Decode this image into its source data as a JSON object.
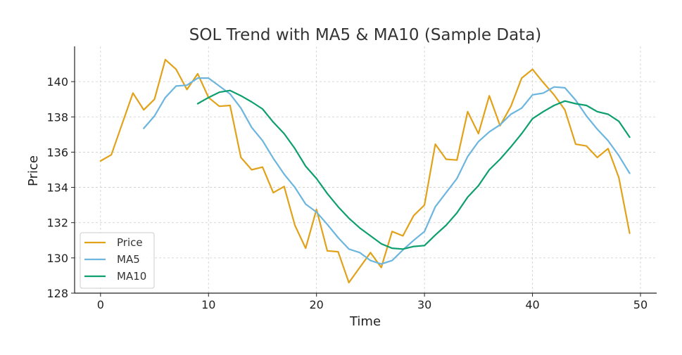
{
  "chart_data": {
    "type": "line",
    "title": "SOL Trend with MA5 & MA10 (Sample Data)",
    "xlabel": "Time",
    "ylabel": "Price",
    "xlim": [
      -2.4,
      51.5
    ],
    "ylim": [
      128,
      142
    ],
    "xticks": [
      0,
      10,
      20,
      30,
      40,
      50
    ],
    "yticks": [
      128,
      130,
      132,
      134,
      136,
      138,
      140
    ],
    "grid": true,
    "legend_position": "lower-left",
    "series": [
      {
        "name": "Price",
        "color": "#E1A21A",
        "x_start": 0,
        "values": [
          135.5,
          135.85,
          137.6,
          139.35,
          138.4,
          139.0,
          141.25,
          140.7,
          139.55,
          140.45,
          139.1,
          138.6,
          138.65,
          135.7,
          135.0,
          135.15,
          133.7,
          134.05,
          131.85,
          130.55,
          132.75,
          130.4,
          130.35,
          128.6,
          129.45,
          130.3,
          129.45,
          131.5,
          131.25,
          132.4,
          133.0,
          136.45,
          135.6,
          135.55,
          138.3,
          137.05,
          139.2,
          137.5,
          138.6,
          140.2,
          140.7,
          139.95,
          139.25,
          138.4,
          136.45,
          136.35,
          135.7,
          136.2,
          134.55,
          131.4
        ]
      },
      {
        "name": "MA5",
        "color": "#6BB5DF",
        "x_start": 4,
        "values": [
          137.35,
          138.05,
          139.1,
          139.75,
          139.8,
          140.2,
          140.2,
          139.75,
          139.3,
          138.5,
          137.4,
          136.65,
          135.65,
          134.75,
          134.0,
          133.05,
          132.6,
          131.9,
          131.15,
          130.5,
          130.3,
          129.85,
          129.65,
          129.85,
          130.45,
          131.0,
          131.5,
          132.9,
          133.7,
          134.5,
          135.75,
          136.6,
          137.15,
          137.55,
          138.15,
          138.5,
          139.25,
          139.35,
          139.7,
          139.65,
          138.95,
          138.05,
          137.3,
          136.65,
          135.8,
          134.8
        ]
      },
      {
        "name": "MA10",
        "color": "#0E9F6E",
        "x_start": 9,
        "values": [
          138.75,
          139.1,
          139.4,
          139.5,
          139.2,
          138.85,
          138.45,
          137.7,
          137.05,
          136.2,
          135.2,
          134.5,
          133.65,
          132.9,
          132.25,
          131.7,
          131.25,
          130.8,
          130.55,
          130.5,
          130.65,
          130.7,
          131.3,
          131.85,
          132.55,
          133.45,
          134.1,
          135.0,
          135.6,
          136.3,
          137.05,
          137.9,
          138.3,
          138.65,
          138.9,
          138.75,
          138.65,
          138.3,
          138.15,
          137.75,
          136.85
        ]
      }
    ]
  }
}
